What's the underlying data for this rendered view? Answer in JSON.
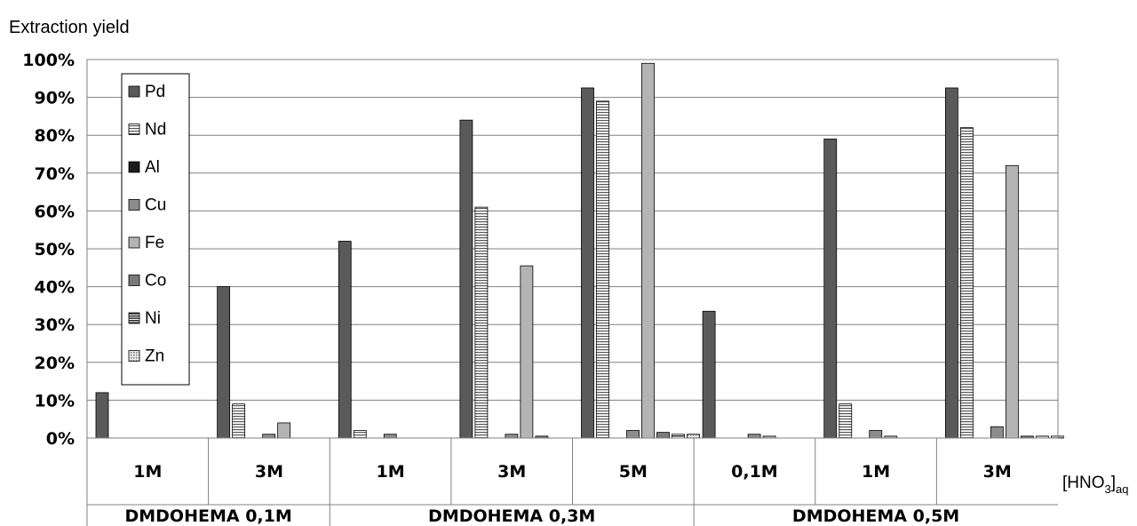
{
  "chart_data": {
    "type": "bar",
    "ylabel": "Extraction yield",
    "xlabel": "[HNO3]aq",
    "xlabel_main": "[HNO",
    "xlabel_sub_num": "3",
    "xlabel_end": "]",
    "xlabel_sub_aq": "aq",
    "ylim": [
      0,
      100
    ],
    "yticks": [
      "0%",
      "10%",
      "20%",
      "30%",
      "40%",
      "50%",
      "60%",
      "70%",
      "80%",
      "90%",
      "100%"
    ],
    "grid": true,
    "legend_position": "top-left",
    "categories": [
      "1M",
      "3M",
      "1M",
      "3M",
      "5M",
      "0,1M",
      "1M",
      "3M"
    ],
    "groups": [
      {
        "label": "DMDOHEMA 0,1M",
        "span": 2
      },
      {
        "label": "DMDOHEMA 0,3M",
        "span": 3
      },
      {
        "label": "DMDOHEMA 0,5M",
        "span": 3
      }
    ],
    "series": [
      {
        "name": "Pd",
        "values": [
          12,
          40,
          52,
          84,
          92.5,
          33.5,
          79,
          92.5
        ]
      },
      {
        "name": "Nd",
        "values": [
          0,
          9,
          2,
          61,
          89,
          0,
          9,
          82
        ]
      },
      {
        "name": "Al",
        "values": [
          0,
          0,
          0,
          0,
          0,
          0,
          0,
          0
        ]
      },
      {
        "name": "Cu",
        "values": [
          0,
          1,
          1,
          1,
          2,
          1,
          2,
          3
        ]
      },
      {
        "name": "Fe",
        "values": [
          0,
          4,
          0,
          45.5,
          99,
          0.5,
          0.5,
          72
        ]
      },
      {
        "name": "Co",
        "values": [
          0,
          0,
          0,
          0.5,
          1.5,
          0,
          0,
          0.5
        ]
      },
      {
        "name": "Ni",
        "values": [
          0,
          0,
          0,
          0,
          1,
          0,
          0,
          0.5
        ]
      },
      {
        "name": "Zn",
        "values": [
          0,
          0,
          0,
          0,
          1,
          0,
          0,
          0.5
        ]
      }
    ],
    "colors": {
      "Pd": "#5a5a5a",
      "Nd": "#ffffff",
      "Al": "#1c1c1c",
      "Cu": "#8c8c8c",
      "Fe": "#b4b4b4",
      "Co": "#7a7a7a",
      "Ni": "#ffffff",
      "Zn": "#e2e2e2"
    },
    "patterns": {
      "Pd": "solid",
      "Nd": "hstripe",
      "Al": "solid",
      "Cu": "solid",
      "Fe": "solid",
      "Co": "solid",
      "Ni": "hstripe-dense",
      "Zn": "dots"
    }
  }
}
